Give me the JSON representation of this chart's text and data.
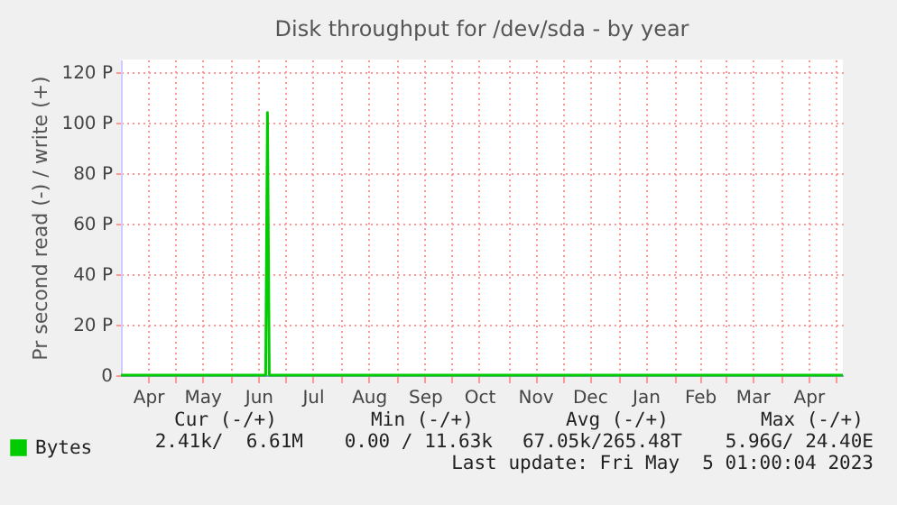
{
  "chart_data": {
    "type": "line",
    "title": "Disk throughput for /dev/sda - by year",
    "ylabel": "Pr second read (-) / write (+)",
    "x": [
      "2022-04-01",
      "2022-06-20",
      "2022-06-21",
      "2022-06-22",
      "2023-05-05"
    ],
    "series": [
      {
        "name": "Bytes",
        "color": "#00cc00",
        "values": [
          0,
          0,
          104,
          0,
          0
        ]
      }
    ],
    "xlim": [
      "2022-04-01",
      "2023-05-05"
    ],
    "xticks": [
      {
        "value": "2022-04-16",
        "label": "Apr"
      },
      {
        "value": "2022-05-01",
        "label": null
      },
      {
        "value": "2022-05-16",
        "label": "May"
      },
      {
        "value": "2022-06-01",
        "label": null
      },
      {
        "value": "2022-06-16",
        "label": "Jun"
      },
      {
        "value": "2022-07-01",
        "label": null
      },
      {
        "value": "2022-07-16",
        "label": "Jul"
      },
      {
        "value": "2022-08-01",
        "label": null
      },
      {
        "value": "2022-08-16",
        "label": "Aug"
      },
      {
        "value": "2022-09-01",
        "label": null
      },
      {
        "value": "2022-09-16",
        "label": "Sep"
      },
      {
        "value": "2022-10-01",
        "label": null
      },
      {
        "value": "2022-10-16",
        "label": "Oct"
      },
      {
        "value": "2022-11-01",
        "label": null
      },
      {
        "value": "2022-11-16",
        "label": "Nov"
      },
      {
        "value": "2022-12-01",
        "label": null
      },
      {
        "value": "2022-12-16",
        "label": "Dec"
      },
      {
        "value": "2023-01-01",
        "label": null
      },
      {
        "value": "2023-01-16",
        "label": "Jan"
      },
      {
        "value": "2023-02-01",
        "label": null
      },
      {
        "value": "2023-02-15",
        "label": "Feb"
      },
      {
        "value": "2023-03-01",
        "label": null
      },
      {
        "value": "2023-03-16",
        "label": "Mar"
      },
      {
        "value": "2023-04-01",
        "label": null
      },
      {
        "value": "2023-04-16",
        "label": "Apr"
      },
      {
        "value": "2023-05-01",
        "label": null
      }
    ],
    "ylim": [
      0,
      125
    ],
    "yticks": [
      {
        "value": 0,
        "label": "0"
      },
      {
        "value": 20,
        "label": "20 P"
      },
      {
        "value": 40,
        "label": "40 P"
      },
      {
        "value": 60,
        "label": "60 P"
      },
      {
        "value": 80,
        "label": "80 P"
      },
      {
        "value": 100,
        "label": "100 P"
      },
      {
        "value": 120,
        "label": "120 P"
      }
    ],
    "grid": true,
    "legend": "bottom left",
    "annotations": [
      "Cur (-/+)",
      "Min (-/+)",
      "Avg (-/+)",
      "Max (-/+)",
      "2.41k/  6.61M",
      "0.00 / 11.63k",
      "67.05k/265.48T",
      "5.96G/ 24.40E",
      "Last update: Fri May  5 01:00:04 2023"
    ]
  }
}
